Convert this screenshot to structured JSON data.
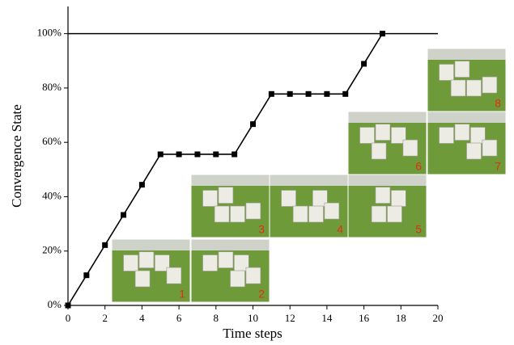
{
  "chart_data": {
    "type": "line",
    "x": [
      0,
      1,
      2,
      3,
      4,
      5,
      6,
      7,
      8,
      9,
      10,
      11,
      12,
      13,
      14,
      15,
      16,
      17
    ],
    "values": [
      0,
      11.1,
      22.2,
      33.3,
      44.4,
      55.6,
      55.6,
      55.6,
      55.6,
      55.6,
      66.7,
      77.8,
      77.8,
      77.8,
      77.8,
      77.8,
      88.9,
      100
    ],
    "color": "#000000",
    "reference_line": 100,
    "xlabel": "Time steps",
    "ylabel": "Convergence State",
    "xlim": [
      0,
      20
    ],
    "xticks": [
      0,
      2,
      4,
      6,
      8,
      10,
      12,
      14,
      16,
      18,
      20
    ],
    "ylim": [
      0,
      110
    ],
    "yticks": [
      {
        "value": 0,
        "label": "0%"
      },
      {
        "value": 20,
        "label": "20%"
      },
      {
        "value": 40,
        "label": "40%"
      },
      {
        "value": 60,
        "label": "60%"
      },
      {
        "value": 80,
        "label": "80%"
      },
      {
        "value": 100,
        "label": "100%"
      }
    ],
    "insets": [
      {
        "label": "1"
      },
      {
        "label": "2"
      },
      {
        "label": "3"
      },
      {
        "label": "4"
      },
      {
        "label": "5"
      },
      {
        "label": "6"
      },
      {
        "label": "7"
      },
      {
        "label": "8"
      }
    ]
  }
}
